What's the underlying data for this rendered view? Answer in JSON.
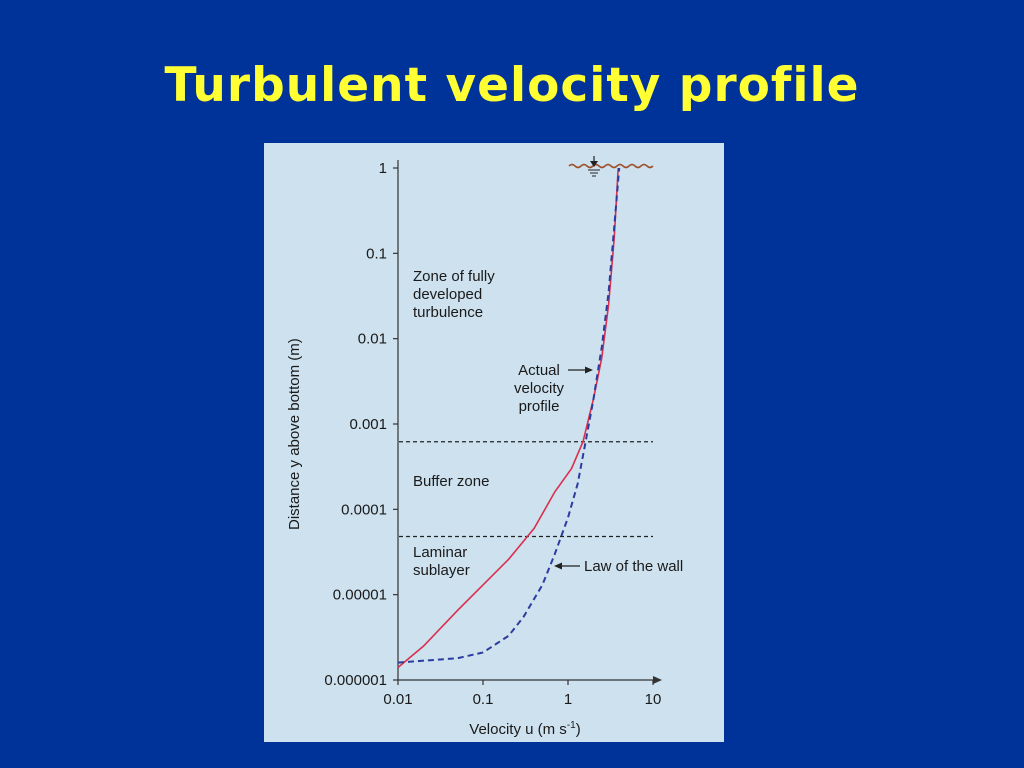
{
  "slide": {
    "title": "Turbulent velocity profile"
  },
  "chart_data": {
    "type": "line",
    "title": "",
    "xlabel": "Velocity u (m s",
    "xlabel_sup": "-1",
    "xlabel_close": ")",
    "ylabel": "Distance y above bottom (m)",
    "x_scale": "log",
    "y_scale": "log",
    "xlim": [
      0.01,
      10
    ],
    "ylim": [
      1e-06,
      1
    ],
    "x_ticks": [
      {
        "value": 0.01,
        "label": "0.01"
      },
      {
        "value": 0.1,
        "label": "0.1"
      },
      {
        "value": 1,
        "label": "1"
      },
      {
        "value": 10,
        "label": "10"
      }
    ],
    "y_ticks": [
      {
        "value": 1,
        "label": "1"
      },
      {
        "value": 0.1,
        "label": "0.1"
      },
      {
        "value": 0.01,
        "label": "0.01"
      },
      {
        "value": 0.001,
        "label": "0.001"
      },
      {
        "value": 0.0001,
        "label": "0.0001"
      },
      {
        "value": 1e-05,
        "label": "0.00001"
      },
      {
        "value": 1e-06,
        "label": "0.000001"
      }
    ],
    "zone_boundaries": [
      0.00062,
      4.8e-05
    ],
    "zones": [
      {
        "lines": [
          "Zone of fully",
          "developed",
          "turbulence"
        ]
      },
      {
        "lines": [
          "Buffer zone"
        ]
      },
      {
        "lines": [
          "Laminar",
          "sublayer"
        ]
      }
    ],
    "series": [
      {
        "style": "solid",
        "color": "#d9304f",
        "points": [
          [
            0.01,
            1.4e-06
          ],
          [
            0.02,
            2.5e-06
          ],
          [
            0.05,
            6.5e-06
          ],
          [
            0.1,
            1.3e-05
          ],
          [
            0.2,
            2.6e-05
          ],
          [
            0.4,
            6e-05
          ],
          [
            0.7,
            0.00016
          ],
          [
            1.1,
            0.0003
          ],
          [
            1.5,
            0.00062
          ],
          [
            2.0,
            0.002
          ],
          [
            2.5,
            0.006
          ],
          [
            3.0,
            0.025
          ],
          [
            3.5,
            0.15
          ],
          [
            3.9,
            1.0
          ]
        ]
      },
      {
        "style": "dashed",
        "color": "#2b3c9e",
        "points": [
          [
            0.01,
            1.6e-06
          ],
          [
            0.05,
            1.8e-06
          ],
          [
            0.1,
            2.1e-06
          ],
          [
            0.2,
            3.3e-06
          ],
          [
            0.3,
            5.5e-06
          ],
          [
            0.5,
            1.3e-05
          ],
          [
            0.7,
            3e-05
          ],
          [
            1.0,
            8e-05
          ],
          [
            1.3,
            0.0002
          ],
          [
            1.6,
            0.0006
          ],
          [
            2.0,
            0.002
          ],
          [
            2.5,
            0.008
          ],
          [
            3.0,
            0.035
          ],
          [
            3.5,
            0.2
          ],
          [
            4.0,
            1.0
          ]
        ]
      }
    ],
    "annotations": {
      "actual": [
        "Actual",
        "velocity",
        "profile"
      ],
      "law": "Law of the wall"
    },
    "colors": {
      "panel_bg": "#cde1ef",
      "actual": "#d9304f",
      "law": "#2b3c9e",
      "water_surface": "#a0522d"
    }
  }
}
